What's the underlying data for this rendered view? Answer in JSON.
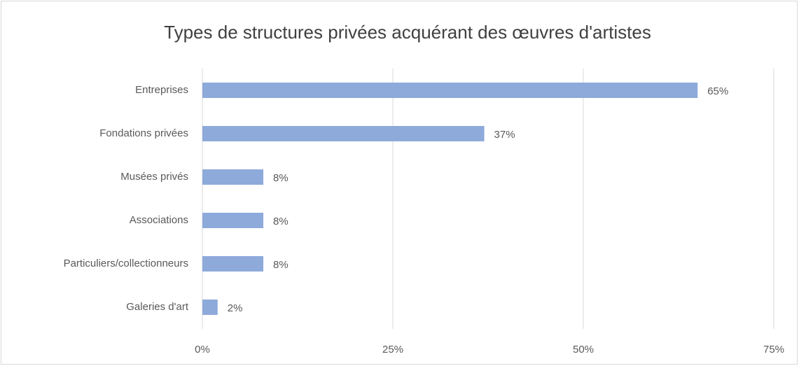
{
  "chart_data": {
    "type": "bar",
    "orientation": "horizontal",
    "title": "Types de structures privées acquérant des œuvres d'artistes",
    "categories": [
      "Entreprises",
      "Fondations privées",
      "Musées privés",
      "Associations",
      "Particuliers/collectionneurs",
      "Galeries d'art"
    ],
    "values": [
      65,
      37,
      8,
      8,
      8,
      2
    ],
    "value_labels": [
      "65%",
      "37%",
      "8%",
      "8%",
      "8%",
      "2%"
    ],
    "color": "#8eaadb",
    "xlim": [
      0,
      75
    ],
    "xticks": [
      {
        "value": 0,
        "label": "0%"
      },
      {
        "value": 25,
        "label": "25%"
      },
      {
        "value": 50,
        "label": "50%"
      },
      {
        "value": 75,
        "label": "75%"
      }
    ],
    "grid": true
  }
}
